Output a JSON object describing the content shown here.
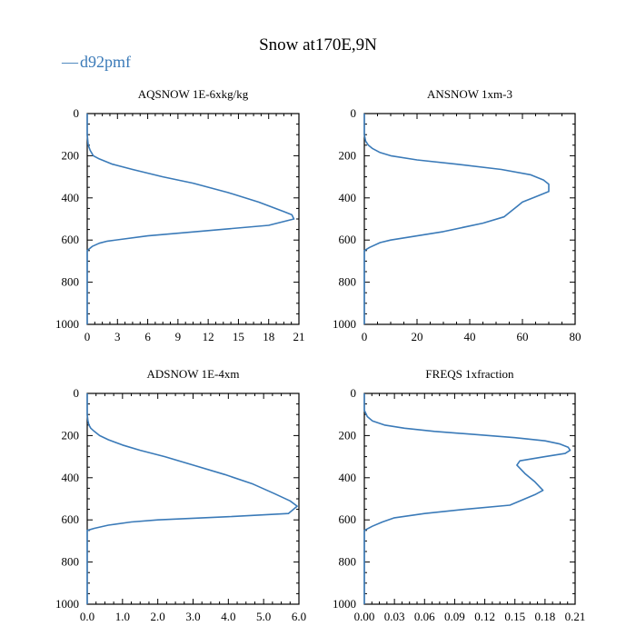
{
  "title": "Snow at170E,9N",
  "legend": {
    "label": "d92pmf",
    "marker": "—",
    "color": "#3a7ab8"
  },
  "chart_data": [
    {
      "type": "line",
      "title": "AQSNOW  1E-6xkg/kg",
      "xlim": [
        0,
        21
      ],
      "ylim": [
        1000,
        0
      ],
      "xticks": [
        0,
        3,
        6,
        9,
        12,
        15,
        18,
        21
      ],
      "xtick_labels": [
        "0",
        "3",
        "6",
        "9",
        "12",
        "15",
        "18",
        "21"
      ],
      "yticks": [
        0,
        200,
        400,
        600,
        800,
        1000
      ],
      "ytick_labels": [
        "0",
        "200",
        "400",
        "600",
        "800",
        "1000"
      ],
      "series": [
        {
          "name": "d92pmf",
          "color": "#3a7ab8",
          "x": [
            0,
            0,
            0.1,
            0.3,
            0.6,
            1.2,
            2.5,
            4.5,
            7.5,
            10.5,
            14,
            17,
            19.5,
            20.3,
            20.5,
            18,
            12,
            6,
            2,
            1.2,
            0.5,
            0,
            0,
            0,
            0
          ],
          "y": [
            0,
            100,
            150,
            175,
            200,
            215,
            240,
            265,
            300,
            330,
            375,
            420,
            465,
            480,
            500,
            530,
            555,
            580,
            605,
            615,
            630,
            650,
            700,
            900,
            1000
          ]
        }
      ]
    },
    {
      "type": "line",
      "title": "ANSNOW  1xm-3",
      "xlim": [
        0,
        80
      ],
      "ylim": [
        1000,
        0
      ],
      "xticks": [
        0,
        20,
        40,
        60,
        80
      ],
      "xtick_labels": [
        "0",
        "20",
        "40",
        "60",
        "80"
      ],
      "yticks": [
        0,
        200,
        400,
        600,
        800,
        1000
      ],
      "ytick_labels": [
        "0",
        "200",
        "400",
        "600",
        "800",
        "1000"
      ],
      "series": [
        {
          "name": "d92pmf",
          "color": "#3a7ab8",
          "x": [
            0,
            0,
            0.5,
            1.5,
            3,
            6,
            10,
            20,
            35,
            52,
            63,
            68,
            70,
            70,
            65,
            60,
            58,
            56,
            53,
            45,
            30,
            20,
            10,
            6,
            2,
            0,
            0,
            0
          ],
          "y": [
            0,
            100,
            130,
            150,
            165,
            185,
            200,
            220,
            240,
            265,
            290,
            315,
            335,
            370,
            395,
            420,
            440,
            460,
            490,
            520,
            560,
            580,
            600,
            612,
            635,
            650,
            700,
            1000
          ]
        }
      ]
    },
    {
      "type": "line",
      "title": "ADSNOW  1E-4xm",
      "xlim": [
        0,
        6
      ],
      "ylim": [
        1000,
        0
      ],
      "xticks": [
        0,
        1,
        2,
        3,
        4,
        5,
        6
      ],
      "xtick_labels": [
        "0.0",
        "1.0",
        "2.0",
        "3.0",
        "4.0",
        "5.0",
        "6.0"
      ],
      "yticks": [
        0,
        200,
        400,
        600,
        800,
        1000
      ],
      "ytick_labels": [
        "0",
        "200",
        "400",
        "600",
        "800",
        "1000"
      ],
      "series": [
        {
          "name": "d92pmf",
          "color": "#3a7ab8",
          "x": [
            0,
            0,
            0.02,
            0.05,
            0.1,
            0.2,
            0.35,
            0.6,
            1.0,
            1.5,
            2.2,
            3.0,
            3.9,
            4.7,
            5.3,
            5.75,
            5.95,
            5.7,
            4.0,
            2.0,
            1.25,
            0.6,
            0.2,
            0,
            0,
            0
          ],
          "y": [
            0,
            100,
            130,
            150,
            165,
            180,
            200,
            220,
            245,
            270,
            300,
            340,
            385,
            430,
            475,
            510,
            535,
            570,
            585,
            600,
            610,
            625,
            640,
            650,
            700,
            1000
          ]
        }
      ]
    },
    {
      "type": "line",
      "title": "FREQS  1xfraction",
      "xlim": [
        0,
        0.21
      ],
      "ylim": [
        1000,
        0
      ],
      "xticks": [
        0,
        0.03,
        0.06,
        0.09,
        0.12,
        0.15,
        0.18,
        0.21
      ],
      "xtick_labels": [
        "0.00",
        "0.03",
        "0.06",
        "0.09",
        "0.12",
        "0.15",
        "0.18",
        "0.21"
      ],
      "yticks": [
        0,
        200,
        400,
        600,
        800,
        1000
      ],
      "ytick_labels": [
        "0",
        "200",
        "400",
        "600",
        "800",
        "1000"
      ],
      "series": [
        {
          "name": "d92pmf",
          "color": "#3a7ab8",
          "x": [
            0,
            0,
            0.003,
            0.008,
            0.02,
            0.04,
            0.07,
            0.11,
            0.15,
            0.18,
            0.195,
            0.203,
            0.205,
            0.2,
            0.18,
            0.155,
            0.152,
            0.16,
            0.17,
            0.178,
            0.17,
            0.16,
            0.145,
            0.1,
            0.06,
            0.03,
            0.018,
            0.008,
            0,
            0,
            0
          ],
          "y": [
            0,
            80,
            110,
            130,
            150,
            165,
            180,
            195,
            210,
            225,
            240,
            255,
            270,
            285,
            300,
            320,
            340,
            380,
            420,
            460,
            480,
            500,
            530,
            550,
            570,
            590,
            610,
            630,
            650,
            700,
            1000
          ]
        }
      ]
    }
  ]
}
